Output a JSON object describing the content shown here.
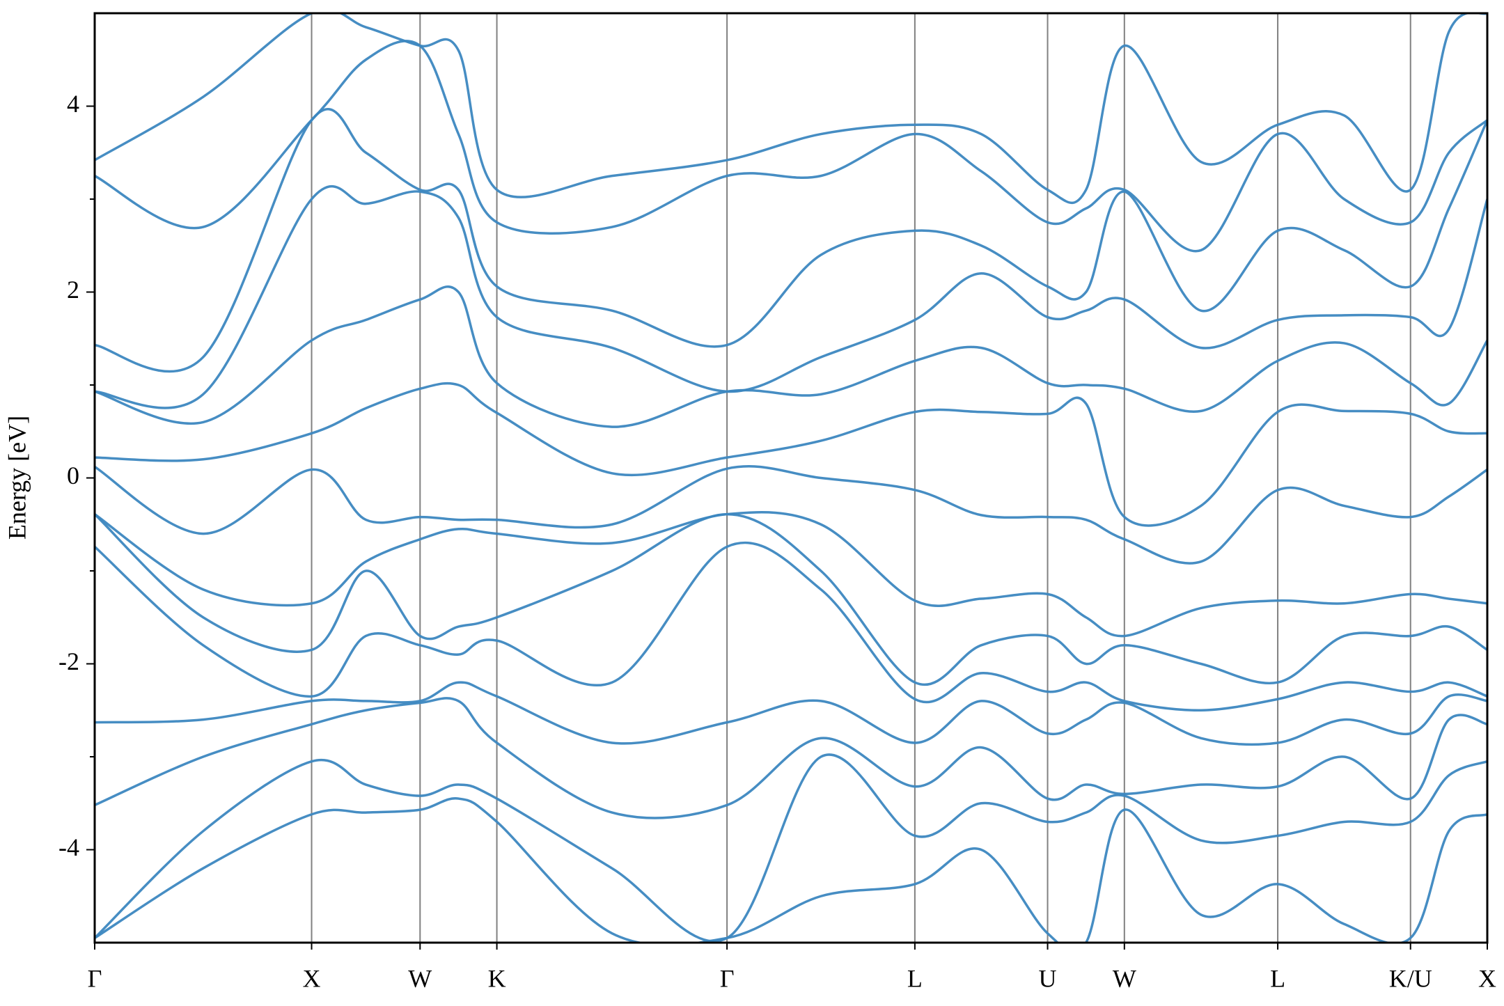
{
  "chart_data": {
    "type": "line",
    "ylabel": "Energy [eV]",
    "xlim": [
      0,
      6.42
    ],
    "ylim": [
      -5,
      5
    ],
    "yticks": [
      -4,
      -2,
      0,
      2,
      4
    ],
    "yminorticks": [
      -3,
      -1,
      1,
      3
    ],
    "xticks": [
      {
        "value": 0,
        "label": "Γ"
      },
      {
        "value": 1,
        "label": "X"
      },
      {
        "value": 1.5,
        "label": "W"
      },
      {
        "value": 1.854,
        "label": "K"
      },
      {
        "value": 2.915,
        "label": "Γ"
      },
      {
        "value": 3.781,
        "label": "L"
      },
      {
        "value": 4.393,
        "label": "U"
      },
      {
        "value": 4.747,
        "label": "W"
      },
      {
        "value": 5.454,
        "label": "L"
      },
      {
        "value": 6.066,
        "label": "K/U"
      },
      {
        "value": 6.42,
        "label": "X"
      }
    ],
    "grid": "x",
    "color": "#3c87c0",
    "x": [
      0,
      0.5,
      1,
      1.25,
      1.5,
      1.677,
      1.854,
      2.385,
      2.915,
      3.348,
      3.781,
      4.087,
      4.393,
      4.57,
      4.747,
      5.1,
      5.454,
      5.76,
      6.066,
      6.243,
      6.42
    ],
    "series": [
      {
        "values": [
          -4.95,
          -4.2,
          -3.62,
          -3.6,
          -3.57,
          -3.45,
          -3.7,
          -4.9,
          -4.95,
          -4.5,
          -4.37,
          -4.0,
          -4.9,
          -5.0,
          -3.57,
          -4.7,
          -4.37,
          -4.8,
          -4.95,
          -3.8,
          -3.62
        ]
      },
      {
        "values": [
          -4.95,
          -3.8,
          -3.05,
          -3.3,
          -3.42,
          -3.3,
          -3.45,
          -4.2,
          -4.95,
          -3.0,
          -3.85,
          -3.5,
          -3.7,
          -3.6,
          -3.42,
          -3.9,
          -3.85,
          -3.7,
          -3.7,
          -3.2,
          -3.05
        ]
      },
      {
        "values": [
          -3.52,
          -3.0,
          -2.65,
          -2.5,
          -2.42,
          -2.4,
          -2.85,
          -3.6,
          -3.52,
          -2.8,
          -3.32,
          -2.9,
          -3.45,
          -3.3,
          -3.4,
          -3.3,
          -3.32,
          -3.0,
          -3.45,
          -2.6,
          -2.65
        ]
      },
      {
        "values": [
          -2.63,
          -2.6,
          -2.4,
          -2.4,
          -2.4,
          -2.2,
          -2.35,
          -2.85,
          -2.63,
          -2.4,
          -2.85,
          -2.4,
          -2.75,
          -2.6,
          -2.42,
          -2.8,
          -2.85,
          -2.6,
          -2.75,
          -2.35,
          -2.4
        ]
      },
      {
        "values": [
          -0.74,
          -1.8,
          -2.35,
          -1.7,
          -1.8,
          -1.9,
          -1.75,
          -2.2,
          -0.74,
          -1.2,
          -2.38,
          -2.1,
          -2.3,
          -2.2,
          -2.4,
          -2.5,
          -2.38,
          -2.2,
          -2.3,
          -2.2,
          -2.35
        ]
      },
      {
        "values": [
          -0.39,
          -1.5,
          -1.85,
          -1.0,
          -1.7,
          -1.6,
          -1.5,
          -1.0,
          -0.39,
          -1.0,
          -2.2,
          -1.8,
          -1.7,
          -2.0,
          -1.8,
          -2.0,
          -2.2,
          -1.7,
          -1.7,
          -1.6,
          -1.85
        ]
      },
      {
        "values": [
          -0.39,
          -1.2,
          -1.35,
          -0.9,
          -0.66,
          -0.55,
          -0.6,
          -0.7,
          -0.39,
          -0.5,
          -1.32,
          -1.3,
          -1.25,
          -1.5,
          -1.7,
          -1.4,
          -1.32,
          -1.35,
          -1.25,
          -1.3,
          -1.35
        ]
      },
      {
        "values": [
          0.12,
          -0.6,
          0.09,
          -0.45,
          -0.42,
          -0.45,
          -0.45,
          -0.5,
          0.1,
          0.0,
          -0.13,
          -0.4,
          -0.42,
          -0.45,
          -0.66,
          -0.9,
          -0.13,
          -0.3,
          -0.42,
          -0.2,
          0.09
        ]
      },
      {
        "values": [
          0.22,
          0.2,
          0.48,
          0.75,
          0.96,
          1.0,
          0.7,
          0.05,
          0.22,
          0.4,
          0.71,
          0.71,
          0.69,
          0.8,
          -0.42,
          -0.3,
          0.71,
          0.72,
          0.69,
          0.5,
          0.48
        ]
      },
      {
        "values": [
          0.93,
          0.6,
          1.48,
          1.7,
          1.92,
          2.0,
          1.02,
          0.55,
          0.93,
          0.9,
          1.26,
          1.4,
          1.02,
          1.0,
          0.96,
          0.72,
          1.26,
          1.45,
          1.02,
          0.8,
          1.48
        ]
      },
      {
        "values": [
          0.93,
          0.9,
          3.0,
          2.95,
          3.08,
          2.8,
          1.73,
          1.4,
          0.93,
          1.3,
          1.7,
          2.2,
          1.73,
          1.8,
          1.92,
          1.4,
          1.7,
          1.75,
          1.73,
          1.6,
          3.0
        ]
      },
      {
        "values": [
          1.43,
          1.3,
          3.85,
          3.5,
          3.1,
          3.1,
          2.06,
          1.8,
          1.43,
          2.4,
          2.66,
          2.5,
          2.06,
          2.0,
          3.08,
          1.8,
          2.66,
          2.45,
          2.06,
          2.9,
          3.85
        ]
      },
      {
        "values": [
          3.25,
          2.7,
          3.85,
          4.5,
          4.65,
          3.7,
          2.75,
          2.7,
          3.25,
          3.25,
          3.7,
          3.3,
          2.75,
          2.9,
          3.1,
          2.45,
          3.7,
          3.0,
          2.75,
          3.5,
          3.85
        ]
      },
      {
        "values": [
          3.42,
          4.1,
          5.0,
          4.85,
          4.65,
          4.6,
          3.1,
          3.25,
          3.42,
          3.7,
          3.8,
          3.7,
          3.1,
          3.1,
          4.65,
          3.4,
          3.8,
          3.9,
          3.1,
          4.8,
          5.0
        ]
      }
    ]
  }
}
